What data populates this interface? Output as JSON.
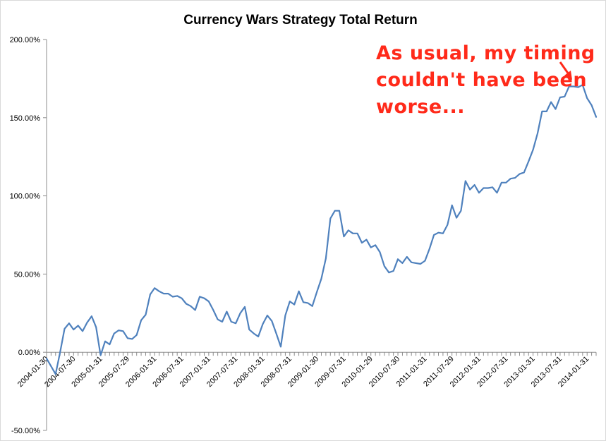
{
  "chart_data": {
    "type": "line",
    "title": "Currency Wars Strategy Total Return",
    "xlabel": "",
    "ylabel": "",
    "ylim": [
      -50,
      200
    ],
    "y_ticks": [
      "200.00%",
      "150.00%",
      "100.00%",
      "50.00%",
      "0.00%",
      "-50.00%"
    ],
    "y_tick_values": [
      200,
      150,
      100,
      50,
      0,
      -50
    ],
    "x_tick_labels": [
      "2004-01-30",
      "2004-07-30",
      "2005-01-31",
      "2005-07-29",
      "2006-01-31",
      "2006-07-31",
      "2007-01-31",
      "2007-07-31",
      "2008-01-31",
      "2008-07-31",
      "2009-01-30",
      "2009-07-31",
      "2010-01-29",
      "2010-07-30",
      "2011-01-31",
      "2011-07-29",
      "2012-01-31",
      "2012-07-31",
      "2013-01-31",
      "2013-07-31",
      "2014-01-31"
    ],
    "grid": "none",
    "legend": "none",
    "line_color": "#4f81bd",
    "series": [
      {
        "values": [
          -4,
          -9,
          -14,
          0,
          15,
          18.5,
          14.5,
          17,
          13.5,
          19,
          23,
          16,
          -2,
          7,
          5,
          12,
          14,
          13.5,
          9,
          8.5,
          11,
          20.5,
          24,
          37,
          41,
          39,
          37.5,
          37.5,
          35.5,
          36,
          34.5,
          31,
          29.5,
          27,
          35.5,
          34.5,
          32.5,
          27,
          21,
          19.5,
          26,
          19.5,
          18.5,
          25,
          29,
          14.5,
          12,
          10,
          18,
          23.5,
          20,
          12,
          3.5,
          23.5,
          32.5,
          30.5,
          39,
          32,
          31.5,
          29.5,
          38.5,
          47,
          60,
          85.5,
          90.5,
          90.5,
          74,
          78,
          76,
          76,
          70,
          72,
          67,
          68.5,
          64,
          55,
          51,
          52,
          59.5,
          57,
          61,
          57.5,
          57,
          56.5,
          58.5,
          66,
          75,
          76.5,
          76,
          81.5,
          94,
          86,
          90.5,
          109.5,
          104,
          107,
          102,
          105,
          105,
          105.5,
          102,
          108.5,
          108.5,
          111,
          111.5,
          114,
          115,
          122,
          129.5,
          140,
          154,
          154,
          160,
          155.5,
          163,
          163.5,
          170,
          170,
          169.5,
          171,
          162.5,
          158,
          150.5
        ]
      }
    ],
    "annotation": {
      "lines": [
        "As usual, my timing",
        "couldn't have been",
        "worse..."
      ],
      "color": "#ff2a1a"
    }
  }
}
